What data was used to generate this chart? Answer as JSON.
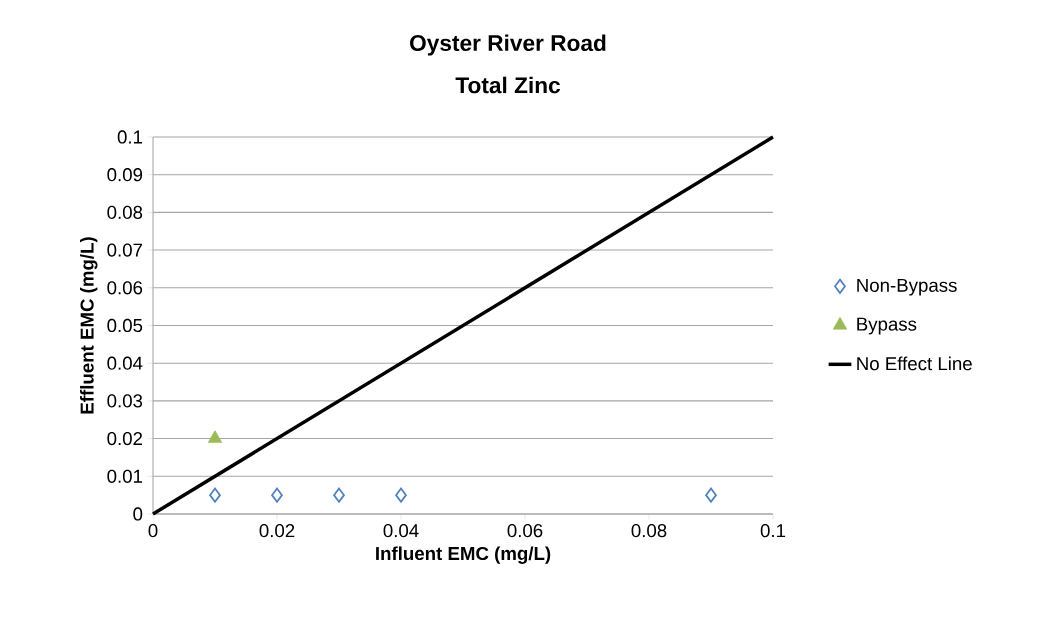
{
  "chart_data": {
    "type": "scatter",
    "title": "Oyster River Road",
    "subtitle": "Total Zinc",
    "xlabel": "Influent EMC (mg/L)",
    "ylabel": "Effluent EMC (mg/L)",
    "series": [
      {
        "name": "Non-Bypass",
        "marker": "diamond",
        "color": "#4f81bd",
        "x": [
          0.01,
          0.02,
          0.03,
          0.04,
          0.09
        ],
        "values": [
          0.005,
          0.005,
          0.005,
          0.005,
          0.005
        ]
      },
      {
        "name": "Bypass",
        "marker": "triangle",
        "color": "#9bbb59",
        "x": [
          0.01
        ],
        "values": [
          0.02
        ]
      },
      {
        "name": "No Effect Line",
        "type": "line",
        "marker": "none",
        "color": "#000000",
        "x": [
          0,
          0.1
        ],
        "values": [
          0,
          0.1
        ]
      }
    ],
    "xlim": [
      0,
      0.1
    ],
    "ylim": [
      0,
      0.1
    ],
    "xticks": [
      0,
      0.02,
      0.04,
      0.06,
      0.08,
      0.1
    ],
    "yticks": [
      0,
      0.01,
      0.02,
      0.03,
      0.04,
      0.05,
      0.06,
      0.07,
      0.08,
      0.09,
      0.1
    ],
    "grid": "y",
    "legend": "right"
  }
}
